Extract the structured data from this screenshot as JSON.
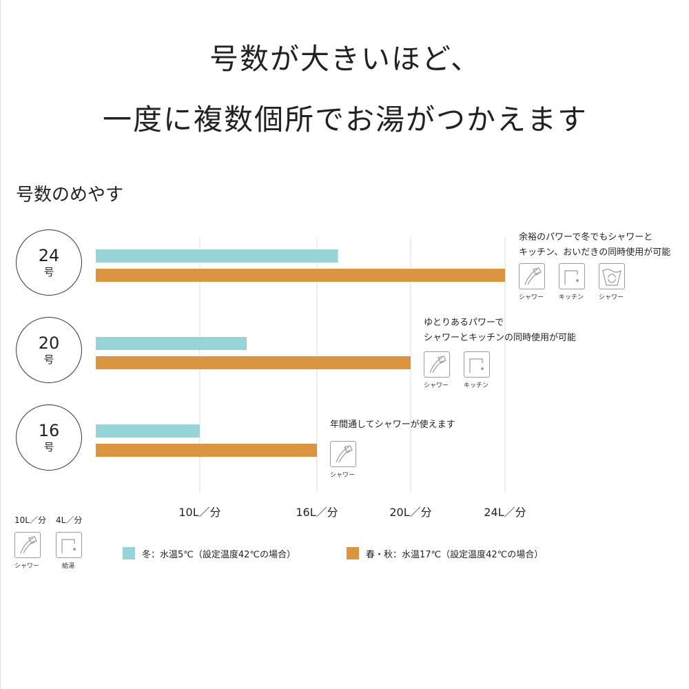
{
  "headline": [
    "号数が大きいほど、",
    "一度に複数個所でお湯がつかえます"
  ],
  "subtitle": "号数のめやす",
  "colors": {
    "winter": "#96d4d8",
    "spring_autumn": "#db9440",
    "grid": "#dddddd"
  },
  "chart_data": {
    "type": "bar",
    "orientation": "horizontal",
    "categories": [
      {
        "number": "24",
        "unit": "号"
      },
      {
        "number": "20",
        "unit": "号"
      },
      {
        "number": "16",
        "unit": "号"
      }
    ],
    "series": [
      {
        "name": "冬：水温5℃（設定温度42℃の場合）",
        "values": [
          16.9,
          12.4,
          10
        ]
      },
      {
        "name": "春・秋：水温17℃（設定温度42℃の場合）",
        "values": [
          24,
          20,
          16
        ]
      }
    ],
    "xticks": [
      10,
      16,
      20,
      24
    ],
    "xtick_labels": [
      "10L／分",
      "16L／分",
      "20L／分",
      "24L／分"
    ],
    "grid": true,
    "legend": "bottom"
  },
  "annotations": [
    {
      "lines": [
        "余裕のパワーで冬でもシャワーと",
        "キッチン、おいだきの同時使用が可能"
      ],
      "icons": [
        {
          "icon": "shower-icon",
          "label": "シャワー"
        },
        {
          "icon": "kitchen-faucet-icon",
          "label": "キッチン"
        },
        {
          "icon": "reheat-bath-icon",
          "label": "シャワー"
        }
      ]
    },
    {
      "lines": [
        "ゆとりあるパワーで",
        "シャワーとキッチンの同時使用が可能"
      ],
      "icons": [
        {
          "icon": "shower-icon",
          "label": "シャワー"
        },
        {
          "icon": "kitchen-faucet-icon",
          "label": "キッチン"
        }
      ]
    },
    {
      "lines": [
        "年間通してシャワーが使えます"
      ],
      "icons": [
        {
          "icon": "shower-icon",
          "label": "シャワー"
        }
      ]
    }
  ],
  "reference": [
    {
      "rate": "10L／分",
      "icon": "shower-icon",
      "label": "シャワー"
    },
    {
      "rate": "4L／分",
      "icon": "faucet-icon",
      "label": "給湯"
    }
  ]
}
